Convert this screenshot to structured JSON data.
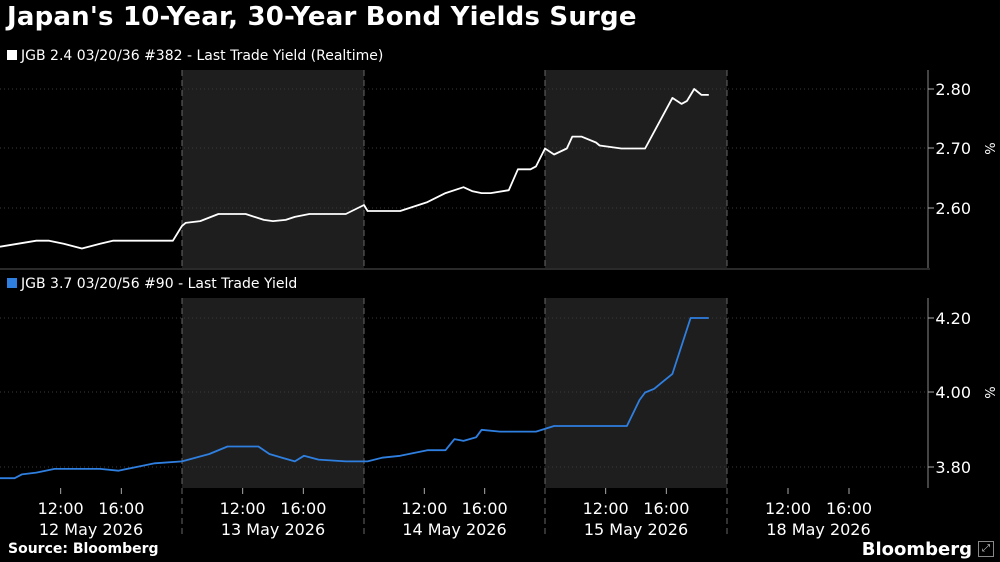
{
  "title": "Japan's 10-Year, 30-Year Bond Yields Surge",
  "source": "Source: Bloomberg",
  "brand": "Bloomberg",
  "chart_data": [
    {
      "type": "line",
      "legend": "JGB 2.4 03/20/36 #382 - Last Trade Yield (Realtime)",
      "color": "#ffffff",
      "unit": "%",
      "ylim": [
        2.53,
        2.83
      ],
      "yticks": [
        "2.60",
        "2.70",
        "2.80"
      ],
      "x_tick_labels": [
        "12:00",
        "16:00",
        "12:00",
        "16:00",
        "12:00",
        "16:00",
        "12:00",
        "16:00",
        "12:00",
        "16:00"
      ],
      "day_labels": [
        "12 May 2026",
        "13 May 2026",
        "14 May 2026",
        "15 May 2026",
        "18 May 2026"
      ],
      "x": [
        0,
        0.1,
        0.2,
        0.27,
        0.35,
        0.45,
        0.5,
        0.55,
        0.62,
        0.68,
        0.75,
        0.85,
        0.95,
        1.0,
        1.02,
        1.1,
        1.2,
        1.35,
        1.45,
        1.5,
        1.57,
        1.62,
        1.7,
        1.75,
        1.9,
        2.0,
        2.02,
        2.1,
        2.2,
        2.35,
        2.45,
        2.55,
        2.6,
        2.65,
        2.7,
        2.8,
        2.85,
        2.92,
        2.95,
        3.0,
        3.05,
        3.12,
        3.15,
        3.2,
        3.28,
        3.3,
        3.42,
        3.5,
        3.55,
        3.7,
        3.75,
        3.78,
        3.82,
        3.86,
        3.9
      ],
      "y": [
        2.535,
        2.54,
        2.545,
        2.545,
        2.54,
        2.532,
        2.536,
        2.54,
        2.545,
        2.545,
        2.545,
        2.545,
        2.545,
        2.57,
        2.575,
        2.578,
        2.59,
        2.59,
        2.58,
        2.578,
        2.58,
        2.585,
        2.59,
        2.59,
        2.59,
        2.605,
        2.595,
        2.595,
        2.595,
        2.61,
        2.625,
        2.635,
        2.628,
        2.625,
        2.625,
        2.63,
        2.665,
        2.665,
        2.67,
        2.7,
        2.69,
        2.7,
        2.72,
        2.72,
        2.71,
        2.705,
        2.7,
        2.7,
        2.7,
        2.785,
        2.775,
        2.78,
        2.8,
        2.79,
        2.79
      ]
    },
    {
      "type": "line",
      "legend": "JGB 3.7 03/20/56 #90 - Last Trade Yield",
      "color": "#2f7fe0",
      "unit": "%",
      "ylim": [
        3.78,
        4.22
      ],
      "yticks": [
        "3.80",
        "4.00",
        "4.20"
      ],
      "x": [
        0,
        0.08,
        0.12,
        0.2,
        0.3,
        0.45,
        0.55,
        0.65,
        0.75,
        0.85,
        1.0,
        1.15,
        1.25,
        1.35,
        1.42,
        1.48,
        1.55,
        1.62,
        1.67,
        1.75,
        1.9,
        2.0,
        2.02,
        2.1,
        2.2,
        2.35,
        2.45,
        2.5,
        2.55,
        2.62,
        2.65,
        2.75,
        2.8,
        2.95,
        3.05,
        3.2,
        3.45,
        3.52,
        3.55,
        3.6,
        3.65,
        3.7,
        3.8,
        3.9
      ],
      "y": [
        3.77,
        3.77,
        3.78,
        3.785,
        3.795,
        3.795,
        3.795,
        3.79,
        3.8,
        3.81,
        3.815,
        3.835,
        3.855,
        3.855,
        3.855,
        3.835,
        3.825,
        3.815,
        3.83,
        3.82,
        3.815,
        3.815,
        3.815,
        3.825,
        3.83,
        3.845,
        3.845,
        3.875,
        3.87,
        3.88,
        3.9,
        3.895,
        3.895,
        3.895,
        3.91,
        3.91,
        3.91,
        3.98,
        4.0,
        4.01,
        4.03,
        4.05,
        4.2,
        4.2
      ]
    }
  ]
}
